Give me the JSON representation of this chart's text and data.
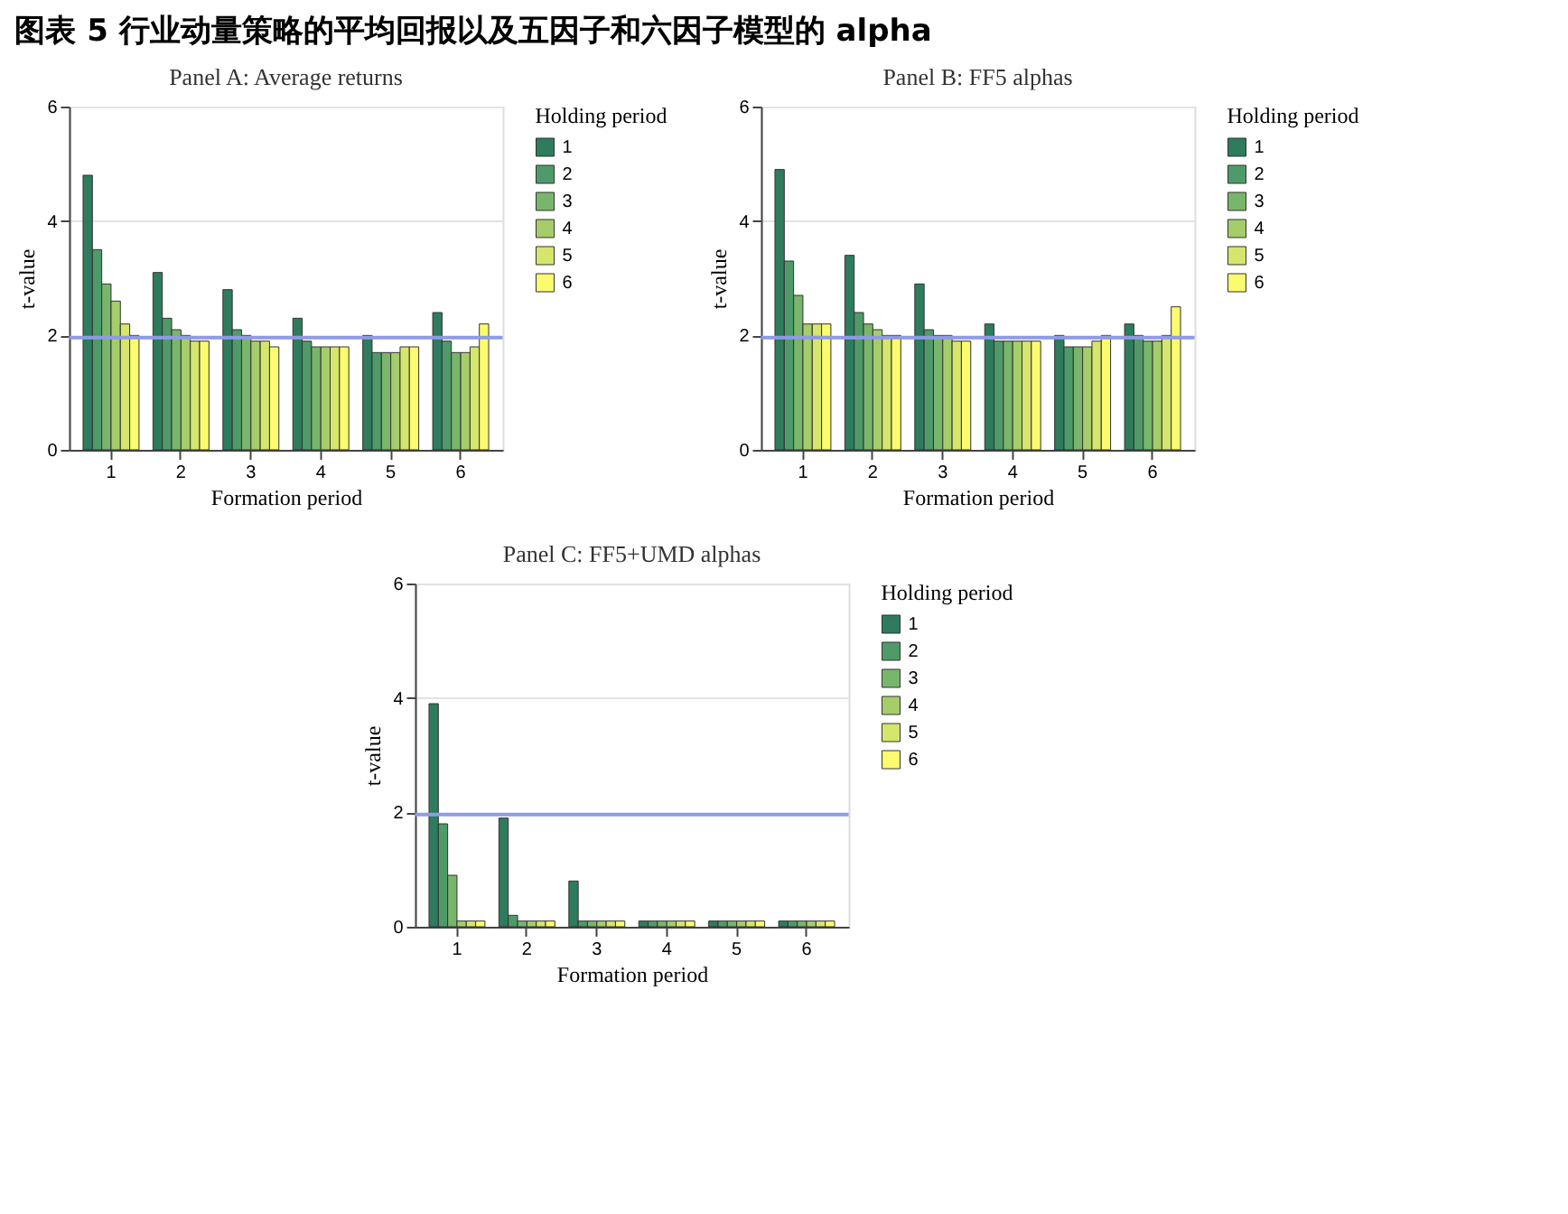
{
  "chart_data": [
    {
      "type": "other",
      "title": "图表 5 行业动量策略的平均回报以及五因子和六因子模型的 alpha"
    },
    {
      "type": "bar",
      "title": "Panel A: Average returns",
      "xlabel": "Formation period",
      "ylabel": "t-value",
      "legend_title": "Holding period",
      "legend": "right",
      "grid": "y",
      "categories": [
        "1",
        "2",
        "3",
        "4",
        "5",
        "6"
      ],
      "ylim": [
        0,
        6
      ],
      "yticks": [
        0,
        2,
        4,
        6
      ],
      "ref_lines": [
        {
          "axis": "y",
          "value": 1.96,
          "color": "#8f9ae8"
        }
      ],
      "series": [
        {
          "name": "1",
          "color": "#2e7b5e",
          "values": [
            4.8,
            3.1,
            2.8,
            2.3,
            2.0,
            2.4
          ]
        },
        {
          "name": "2",
          "color": "#4f9a69",
          "values": [
            3.5,
            2.3,
            2.1,
            1.9,
            1.7,
            1.9
          ]
        },
        {
          "name": "3",
          "color": "#78b66b",
          "values": [
            2.9,
            2.1,
            2.0,
            1.8,
            1.7,
            1.7
          ]
        },
        {
          "name": "4",
          "color": "#a5cd6a",
          "values": [
            2.6,
            2.0,
            1.9,
            1.8,
            1.7,
            1.7
          ]
        },
        {
          "name": "5",
          "color": "#d6e56c",
          "values": [
            2.2,
            1.9,
            1.9,
            1.8,
            1.8,
            1.8
          ]
        },
        {
          "name": "6",
          "color": "#fbfb6f",
          "values": [
            2.0,
            1.9,
            1.8,
            1.8,
            1.8,
            2.2
          ]
        }
      ]
    },
    {
      "type": "bar",
      "title": "Panel B: FF5 alphas",
      "xlabel": "Formation period",
      "ylabel": "t-value",
      "legend_title": "Holding period",
      "legend": "right",
      "grid": "y",
      "categories": [
        "1",
        "2",
        "3",
        "4",
        "5",
        "6"
      ],
      "ylim": [
        0,
        6
      ],
      "yticks": [
        0,
        2,
        4,
        6
      ],
      "ref_lines": [
        {
          "axis": "y",
          "value": 1.96,
          "color": "#8f9ae8"
        }
      ],
      "series": [
        {
          "name": "1",
          "color": "#2e7b5e",
          "values": [
            4.9,
            3.4,
            2.9,
            2.2,
            2.0,
            2.2
          ]
        },
        {
          "name": "2",
          "color": "#4f9a69",
          "values": [
            3.3,
            2.4,
            2.1,
            1.9,
            1.8,
            2.0
          ]
        },
        {
          "name": "3",
          "color": "#78b66b",
          "values": [
            2.7,
            2.2,
            2.0,
            1.9,
            1.8,
            1.9
          ]
        },
        {
          "name": "4",
          "color": "#a5cd6a",
          "values": [
            2.2,
            2.1,
            2.0,
            1.9,
            1.8,
            1.9
          ]
        },
        {
          "name": "5",
          "color": "#d6e56c",
          "values": [
            2.2,
            2.0,
            1.9,
            1.9,
            1.9,
            2.0
          ]
        },
        {
          "name": "6",
          "color": "#fbfb6f",
          "values": [
            2.2,
            2.0,
            1.9,
            1.9,
            2.0,
            2.5
          ]
        }
      ]
    },
    {
      "type": "bar",
      "title": "Panel C: FF5+UMD alphas",
      "xlabel": "Formation period",
      "ylabel": "t-value",
      "legend_title": "Holding period",
      "legend": "right",
      "grid": "y",
      "categories": [
        "1",
        "2",
        "3",
        "4",
        "5",
        "6"
      ],
      "ylim": [
        0,
        6
      ],
      "yticks": [
        0,
        2,
        4,
        6
      ],
      "ref_lines": [
        {
          "axis": "y",
          "value": 1.96,
          "color": "#8f9ae8"
        }
      ],
      "series": [
        {
          "name": "1",
          "color": "#2e7b5e",
          "values": [
            3.9,
            1.9,
            0.8,
            0.1,
            0.1,
            0.1
          ]
        },
        {
          "name": "2",
          "color": "#4f9a69",
          "values": [
            1.8,
            0.2,
            0.1,
            0.1,
            0.1,
            0.1
          ]
        },
        {
          "name": "3",
          "color": "#78b66b",
          "values": [
            0.9,
            0.1,
            0.1,
            0.1,
            0.1,
            0.1
          ]
        },
        {
          "name": "4",
          "color": "#a5cd6a",
          "values": [
            0.1,
            0.1,
            0.1,
            0.1,
            0.1,
            0.1
          ]
        },
        {
          "name": "5",
          "color": "#d6e56c",
          "values": [
            0.1,
            0.1,
            0.1,
            0.1,
            0.1,
            0.1
          ]
        },
        {
          "name": "6",
          "color": "#fbfb6f",
          "values": [
            0.1,
            0.1,
            0.1,
            0.1,
            0.1,
            0.1
          ]
        }
      ]
    }
  ]
}
